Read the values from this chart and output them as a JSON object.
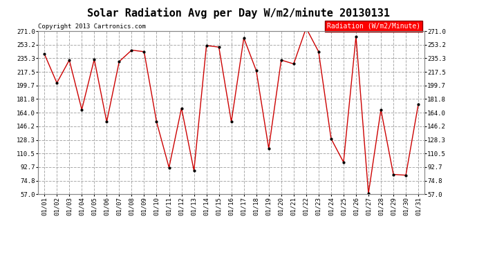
{
  "title": "Solar Radiation Avg per Day W/m2/minute 20130131",
  "copyright": "Copyright 2013 Cartronics.com",
  "legend_label": "Radiation (W/m2/Minute)",
  "dates": [
    "01/01",
    "01/02",
    "01/03",
    "01/04",
    "01/05",
    "01/06",
    "01/07",
    "01/08",
    "01/09",
    "01/10",
    "01/11",
    "01/12",
    "01/13",
    "01/14",
    "01/15",
    "01/16",
    "01/17",
    "01/18",
    "01/19",
    "01/20",
    "01/21",
    "01/22",
    "01/23",
    "01/24",
    "01/25",
    "01/26",
    "01/27",
    "01/28",
    "01/29",
    "01/30",
    "01/31"
  ],
  "values": [
    241,
    203,
    233,
    168,
    234,
    152,
    231,
    246,
    244,
    152,
    92,
    170,
    88,
    252,
    250,
    152,
    262,
    219,
    117,
    233,
    228,
    275,
    244,
    130,
    99,
    264,
    58,
    168,
    83,
    82,
    175
  ],
  "line_color": "#cc0000",
  "marker_color": "#000000",
  "bg_color": "#ffffff",
  "grid_color": "#aaaaaa",
  "ymin": 57.0,
  "ymax": 271.0,
  "ytick_labels": [
    "57.0",
    "74.8",
    "92.7",
    "110.5",
    "128.3",
    "146.2",
    "164.0",
    "181.8",
    "199.7",
    "217.5",
    "235.3",
    "253.2",
    "271.0"
  ],
  "ytick_values": [
    57.0,
    74.8,
    92.7,
    110.5,
    128.3,
    146.2,
    164.0,
    181.8,
    199.7,
    217.5,
    235.3,
    253.2,
    271.0
  ],
  "title_fontsize": 11,
  "tick_fontsize": 6.5,
  "copyright_fontsize": 6.5,
  "legend_fontsize": 7
}
